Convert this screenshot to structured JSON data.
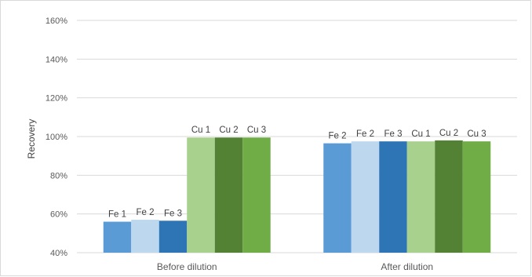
{
  "chart_data": {
    "type": "bar",
    "title": "",
    "xlabel": "",
    "ylabel": "Recovery",
    "ylim": [
      0.4,
      1.6
    ],
    "yticks": [
      "40%",
      "60%",
      "80%",
      "100%",
      "120%",
      "140%",
      "160%"
    ],
    "grid": true,
    "legend": "none",
    "categories": [
      "Before dilution",
      "After dilution"
    ],
    "groups": [
      {
        "category": "Before dilution",
        "bars": [
          {
            "label": "Fe 1",
            "value": 0.56,
            "color": "#5b9bd5"
          },
          {
            "label": "Fe 2",
            "value": 0.57,
            "color": "#bdd7ee"
          },
          {
            "label": "Fe 3",
            "value": 0.565,
            "color": "#2e75b6"
          },
          {
            "label": "Cu 1",
            "value": 0.995,
            "color": "#a9d18e"
          },
          {
            "label": "Cu 2",
            "value": 0.995,
            "color": "#548235"
          },
          {
            "label": "Cu 3",
            "value": 0.995,
            "color": "#70ad47"
          }
        ]
      },
      {
        "category": "After dilution",
        "bars": [
          {
            "label": "Fe 2",
            "value": 0.965,
            "color": "#5b9bd5"
          },
          {
            "label": "Fe 2",
            "value": 0.975,
            "color": "#bdd7ee"
          },
          {
            "label": "Fe 3",
            "value": 0.975,
            "color": "#2e75b6"
          },
          {
            "label": "Cu 1",
            "value": 0.975,
            "color": "#a9d18e"
          },
          {
            "label": "Cu 2",
            "value": 0.98,
            "color": "#548235"
          },
          {
            "label": "Cu 3",
            "value": 0.975,
            "color": "#70ad47"
          }
        ]
      }
    ]
  }
}
